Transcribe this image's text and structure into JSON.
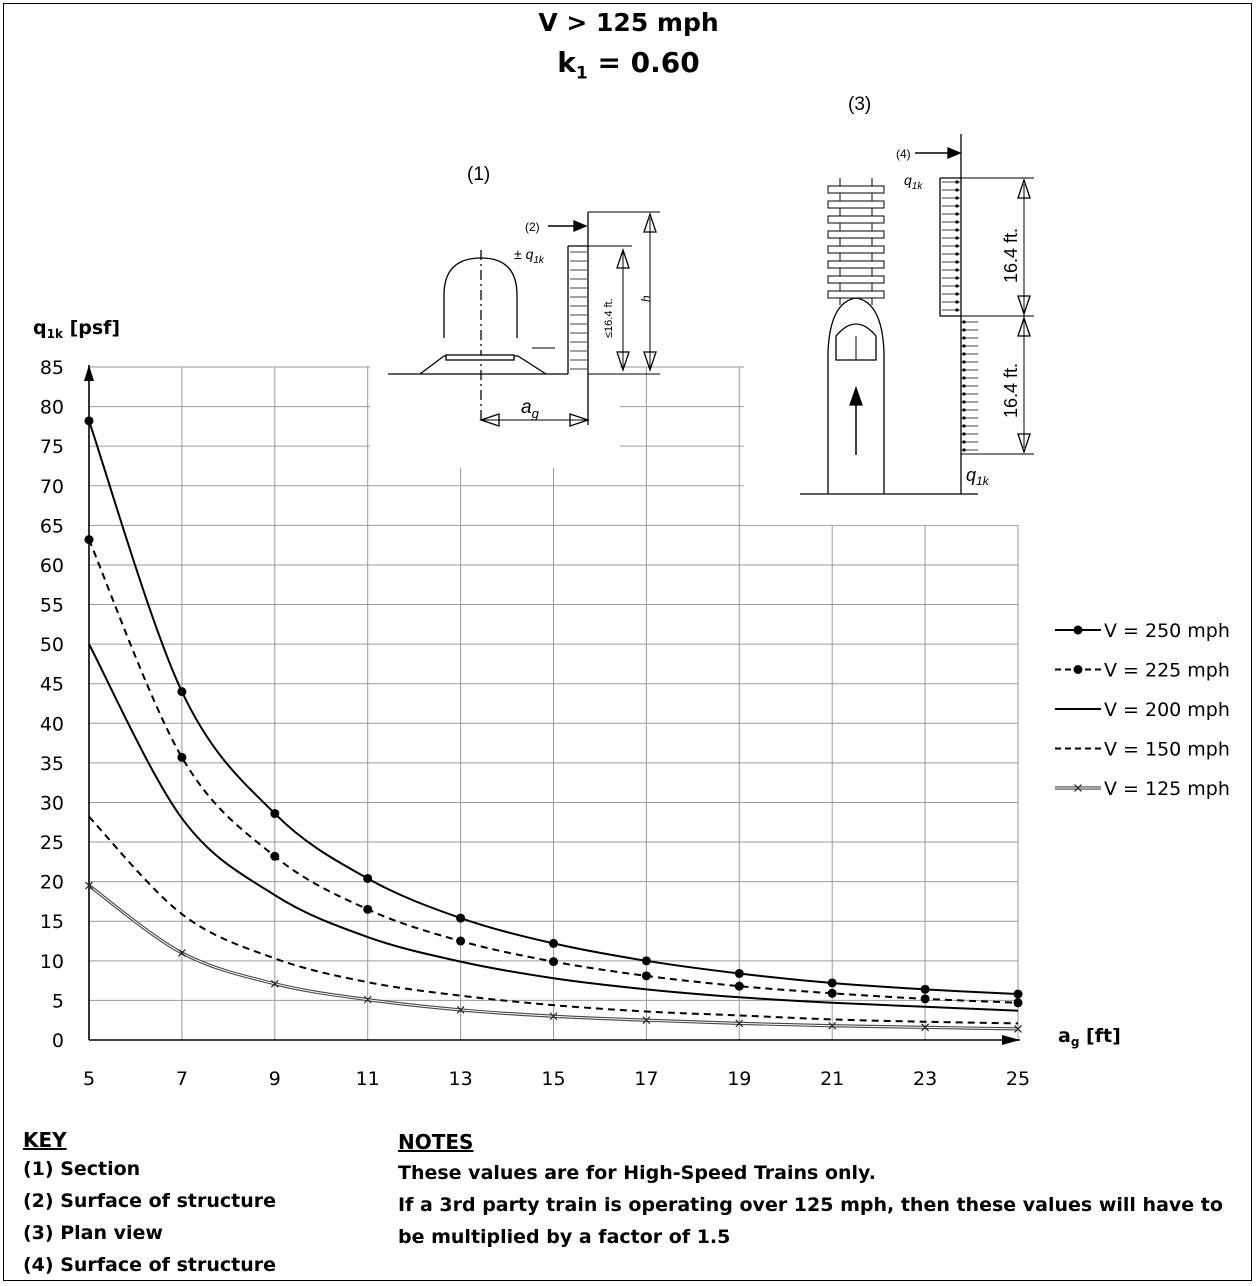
{
  "header": {
    "title_line1": "V  > 125 mph",
    "title_line2_main": "k",
    "title_line2_sub": "1",
    "title_line2_rest": " = 0.60"
  },
  "diagram1": {
    "label": "(1)",
    "marker2": "(2)",
    "q_label": "± q",
    "q_sub": "1k",
    "h_label": "h",
    "dim_label": "≤16.4 ft.",
    "ag_label": "a",
    "ag_sub": "g"
  },
  "diagram3": {
    "label": "(3)",
    "marker4": "(4)",
    "q_top_label": "q",
    "q_top_sub": "1k",
    "dim_upper": "16.4 ft.",
    "dim_lower": "16.4 ft.",
    "q_bottom_label": "q",
    "q_bottom_sub": "1k"
  },
  "chart_data": {
    "type": "line",
    "xlabel_main": "a",
    "xlabel_sub": "g",
    "xlabel_unit": " [ft]",
    "ylabel_main": "q",
    "ylabel_sub": "1k",
    "ylabel_unit": " [psf]",
    "xlim": [
      5,
      25
    ],
    "ylim": [
      0,
      85
    ],
    "x_ticks": [
      5,
      7,
      9,
      11,
      13,
      15,
      17,
      19,
      21,
      23,
      25
    ],
    "y_ticks": [
      0,
      5,
      10,
      15,
      20,
      25,
      30,
      35,
      40,
      45,
      50,
      55,
      60,
      65,
      70,
      75,
      80,
      85
    ],
    "grid": true,
    "legend_position": "right",
    "x": [
      5,
      7,
      9,
      11,
      13,
      15,
      17,
      19,
      21,
      23,
      25
    ],
    "series": [
      {
        "name": "V = 250 mph",
        "style": "solid-dot",
        "values": [
          78.2,
          44.0,
          28.6,
          20.4,
          15.4,
          12.2,
          10.0,
          8.4,
          7.2,
          6.4,
          5.8
        ]
      },
      {
        "name": "V = 225 mph",
        "style": "dashed-dot",
        "values": [
          63.2,
          35.7,
          23.2,
          16.5,
          12.5,
          9.9,
          8.1,
          6.8,
          5.9,
          5.2,
          4.7
        ]
      },
      {
        "name": "V = 200 mph",
        "style": "solid",
        "values": [
          50.0,
          28.0,
          18.3,
          13.0,
          9.9,
          7.8,
          6.4,
          5.4,
          4.7,
          4.2,
          3.7
        ]
      },
      {
        "name": "V = 150 mph",
        "style": "dashed",
        "values": [
          28.2,
          15.9,
          10.3,
          7.3,
          5.6,
          4.4,
          3.6,
          3.1,
          2.6,
          2.3,
          2.1
        ]
      },
      {
        "name": "V = 125 mph",
        "style": "double-x",
        "values": [
          19.5,
          11.0,
          7.1,
          5.1,
          3.8,
          3.0,
          2.5,
          2.1,
          1.8,
          1.6,
          1.4
        ]
      }
    ]
  },
  "footer": {
    "key_heading": "KEY",
    "key_items": [
      "(1)  Section",
      "(2)  Surface of structure",
      "(3)  Plan view",
      "(4)  Surface of structure"
    ],
    "notes_heading": "NOTES",
    "notes_lines": [
      "These values are for High-Speed Trains only.",
      "If a 3rd party train is operating over 125 mph, then these values will have to",
      "be multiplied by a factor of 1.5"
    ]
  }
}
